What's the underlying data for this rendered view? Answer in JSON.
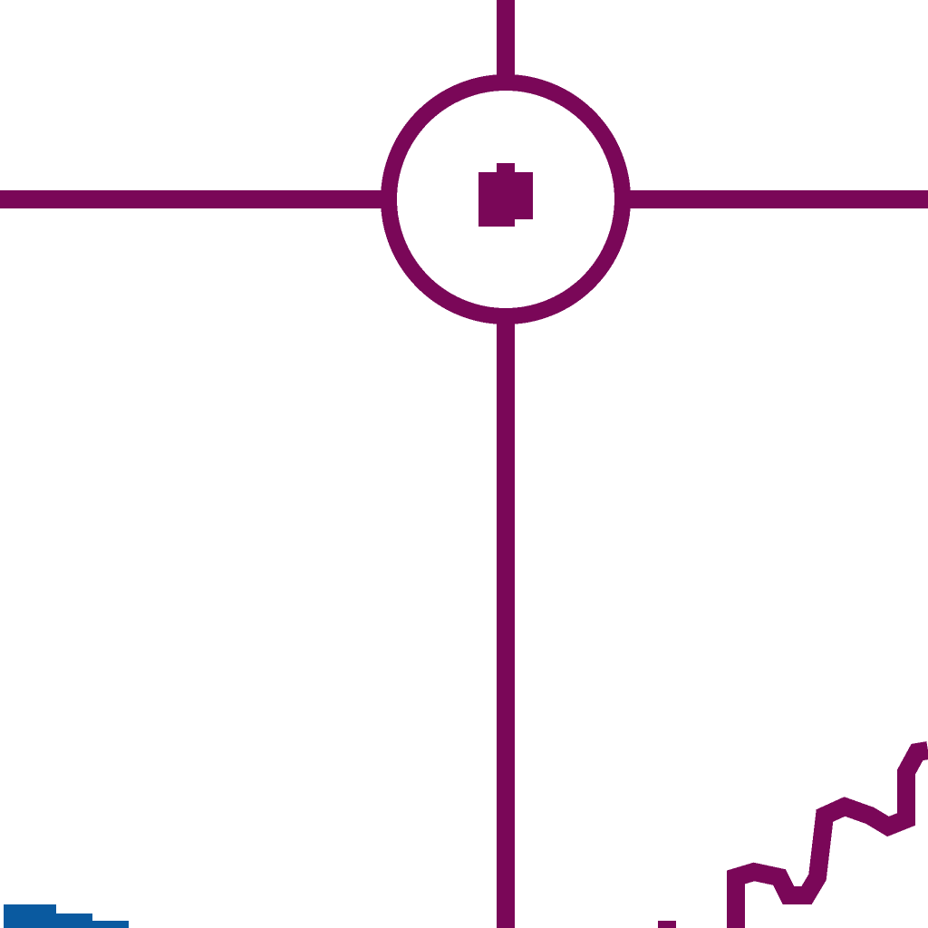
{
  "colors": {
    "background": "#ffffff",
    "crosshair": "#7a0758",
    "trace": "#7a0758",
    "secondary_trace": "#0a5aa0"
  },
  "icons": {
    "cursor": "crosshair-cursor-icon",
    "center_marker": "target-dot-icon"
  }
}
